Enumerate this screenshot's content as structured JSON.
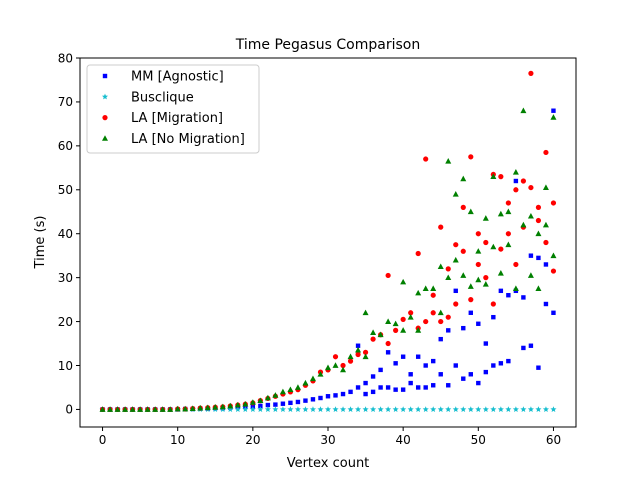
{
  "chart_data": {
    "type": "scatter",
    "title": "Time Pegasus Comparison",
    "xlabel": "Vertex count",
    "ylabel": "Time (s)",
    "xlim": [
      -3,
      63
    ],
    "ylim": [
      -4,
      80
    ],
    "xticks": [
      0,
      10,
      20,
      30,
      40,
      50,
      60
    ],
    "yticks": [
      0,
      10,
      20,
      30,
      40,
      50,
      60,
      70,
      80
    ],
    "grid": false,
    "legend": "top-left",
    "series": [
      {
        "name": "MM [Agnostic]",
        "color": "#0000ff",
        "marker": "square",
        "points": [
          [
            0,
            0
          ],
          [
            1,
            0
          ],
          [
            2,
            0
          ],
          [
            3,
            0
          ],
          [
            4,
            0
          ],
          [
            5,
            0
          ],
          [
            6,
            0
          ],
          [
            7,
            0
          ],
          [
            8,
            0
          ],
          [
            9,
            0
          ],
          [
            10,
            0
          ],
          [
            11,
            0.1
          ],
          [
            12,
            0.1
          ],
          [
            13,
            0.2
          ],
          [
            14,
            0.2
          ],
          [
            15,
            0.3
          ],
          [
            16,
            0.3
          ],
          [
            17,
            0.4
          ],
          [
            18,
            0.5
          ],
          [
            19,
            0.6
          ],
          [
            20,
            0.7
          ],
          [
            21,
            0.8
          ],
          [
            22,
            1.0
          ],
          [
            23,
            1.1
          ],
          [
            24,
            1.3
          ],
          [
            25,
            1.5
          ],
          [
            26,
            1.7
          ],
          [
            27,
            2.0
          ],
          [
            28,
            2.3
          ],
          [
            29,
            2.6
          ],
          [
            30,
            3.0
          ],
          [
            31,
            3.2
          ],
          [
            32,
            3.5
          ],
          [
            33,
            4.0
          ],
          [
            34,
            14.5
          ],
          [
            34,
            5.0
          ],
          [
            35,
            3.5
          ],
          [
            35,
            6.0
          ],
          [
            36,
            4.0
          ],
          [
            36,
            7.5
          ],
          [
            37,
            5.0
          ],
          [
            37,
            9.0
          ],
          [
            38,
            5.0
          ],
          [
            38,
            13.0
          ],
          [
            39,
            4.5
          ],
          [
            39,
            10.5
          ],
          [
            40,
            4.5
          ],
          [
            40,
            12.0
          ],
          [
            41,
            6.0
          ],
          [
            41,
            8.0
          ],
          [
            42,
            5.0
          ],
          [
            42,
            12.0
          ],
          [
            43,
            5.0
          ],
          [
            43,
            10.0
          ],
          [
            44,
            5.5
          ],
          [
            44,
            11.0
          ],
          [
            45,
            8.0
          ],
          [
            45,
            16.0
          ],
          [
            46,
            5.5
          ],
          [
            46,
            18.0
          ],
          [
            47,
            10.0
          ],
          [
            47,
            27.0
          ],
          [
            48,
            7.0
          ],
          [
            48,
            18.5
          ],
          [
            49,
            8.0
          ],
          [
            49,
            22.0
          ],
          [
            50,
            6.0
          ],
          [
            50,
            19.5
          ],
          [
            51,
            8.5
          ],
          [
            51,
            15.0
          ],
          [
            52,
            10.0
          ],
          [
            52,
            21.0
          ],
          [
            53,
            10.5
          ],
          [
            53,
            27.0
          ],
          [
            54,
            11.0
          ],
          [
            54,
            26.0
          ],
          [
            55,
            27.0
          ],
          [
            55,
            52.0
          ],
          [
            56,
            14.0
          ],
          [
            56,
            25.5
          ],
          [
            57,
            14.5
          ],
          [
            57,
            35.0
          ],
          [
            58,
            9.5
          ],
          [
            58,
            34.5
          ],
          [
            59,
            24.0
          ],
          [
            59,
            33.0
          ],
          [
            60,
            22.0
          ],
          [
            60,
            68.0
          ]
        ]
      },
      {
        "name": "Busclique",
        "color": "#17becf",
        "marker": "star",
        "points": [
          [
            0,
            0
          ],
          [
            1,
            0
          ],
          [
            2,
            0
          ],
          [
            3,
            0
          ],
          [
            4,
            0
          ],
          [
            5,
            0
          ],
          [
            6,
            0
          ],
          [
            7,
            0
          ],
          [
            8,
            0
          ],
          [
            9,
            0
          ],
          [
            10,
            0
          ],
          [
            11,
            0
          ],
          [
            12,
            0
          ],
          [
            13,
            0
          ],
          [
            14,
            0
          ],
          [
            15,
            0
          ],
          [
            16,
            0
          ],
          [
            17,
            0
          ],
          [
            18,
            0
          ],
          [
            19,
            0
          ],
          [
            20,
            0
          ],
          [
            21,
            0
          ],
          [
            22,
            0
          ],
          [
            23,
            0
          ],
          [
            24,
            0
          ],
          [
            25,
            0
          ],
          [
            26,
            0
          ],
          [
            27,
            0
          ],
          [
            28,
            0
          ],
          [
            29,
            0
          ],
          [
            30,
            0
          ],
          [
            31,
            0
          ],
          [
            32,
            0
          ],
          [
            33,
            0
          ],
          [
            34,
            0
          ],
          [
            35,
            0
          ],
          [
            36,
            0
          ],
          [
            37,
            0
          ],
          [
            38,
            0
          ],
          [
            39,
            0
          ],
          [
            40,
            0
          ],
          [
            41,
            0
          ],
          [
            42,
            0
          ],
          [
            43,
            0
          ],
          [
            44,
            0
          ],
          [
            45,
            0
          ],
          [
            46,
            0
          ],
          [
            47,
            0
          ],
          [
            48,
            0
          ],
          [
            49,
            0
          ],
          [
            50,
            0
          ],
          [
            51,
            0
          ],
          [
            52,
            0
          ],
          [
            53,
            0
          ],
          [
            54,
            0
          ],
          [
            55,
            0
          ],
          [
            56,
            0
          ],
          [
            57,
            0
          ],
          [
            58,
            0
          ],
          [
            59,
            0
          ],
          [
            60,
            0
          ]
        ]
      },
      {
        "name": "LA [Migration]",
        "color": "#ff0000",
        "marker": "circle",
        "points": [
          [
            0,
            0
          ],
          [
            1,
            0
          ],
          [
            2,
            0
          ],
          [
            3,
            0
          ],
          [
            4,
            0
          ],
          [
            5,
            0
          ],
          [
            6,
            0
          ],
          [
            7,
            0
          ],
          [
            8,
            0
          ],
          [
            9,
            0
          ],
          [
            10,
            0.1
          ],
          [
            11,
            0.1
          ],
          [
            12,
            0.2
          ],
          [
            13,
            0.3
          ],
          [
            14,
            0.4
          ],
          [
            15,
            0.5
          ],
          [
            16,
            0.6
          ],
          [
            17,
            0.8
          ],
          [
            18,
            1.0
          ],
          [
            19,
            1.2
          ],
          [
            20,
            1.5
          ],
          [
            21,
            2.0
          ],
          [
            22,
            2.5
          ],
          [
            23,
            3.0
          ],
          [
            24,
            3.5
          ],
          [
            25,
            4.0
          ],
          [
            26,
            4.5
          ],
          [
            27,
            5.5
          ],
          [
            28,
            6.5
          ],
          [
            29,
            8.5
          ],
          [
            30,
            9.0
          ],
          [
            31,
            12.0
          ],
          [
            32,
            10.0
          ],
          [
            33,
            11.0
          ],
          [
            34,
            12.5
          ],
          [
            35,
            13.0
          ],
          [
            36,
            16.0
          ],
          [
            37,
            17.0
          ],
          [
            38,
            30.5
          ],
          [
            38,
            15.0
          ],
          [
            39,
            18.0
          ],
          [
            40,
            20.5
          ],
          [
            41,
            22.0
          ],
          [
            42,
            35.5
          ],
          [
            42,
            18.5
          ],
          [
            43,
            57.0
          ],
          [
            43,
            20.0
          ],
          [
            44,
            26.0
          ],
          [
            44,
            22.0
          ],
          [
            45,
            41.5
          ],
          [
            45,
            20.0
          ],
          [
            46,
            32.0
          ],
          [
            46,
            21.0
          ],
          [
            47,
            37.5
          ],
          [
            47,
            24.0
          ],
          [
            48,
            46.0
          ],
          [
            48,
            36.0
          ],
          [
            49,
            57.5
          ],
          [
            49,
            25.0
          ],
          [
            50,
            40.0
          ],
          [
            50,
            33.0
          ],
          [
            51,
            38.0
          ],
          [
            51,
            30.0
          ],
          [
            52,
            53.5
          ],
          [
            52,
            24.0
          ],
          [
            53,
            53.0
          ],
          [
            53,
            36.5
          ],
          [
            54,
            47.0
          ],
          [
            54,
            40.0
          ],
          [
            55,
            50.0
          ],
          [
            55,
            33.0
          ],
          [
            56,
            52.0
          ],
          [
            56,
            41.5
          ],
          [
            57,
            76.5
          ],
          [
            57,
            50.5
          ],
          [
            58,
            46.0
          ],
          [
            58,
            43.0
          ],
          [
            59,
            58.5
          ],
          [
            59,
            38.0
          ],
          [
            60,
            47.0
          ],
          [
            60,
            31.5
          ]
        ]
      },
      {
        "name": "LA [No Migration]",
        "color": "#008000",
        "marker": "triangle",
        "points": [
          [
            0,
            0
          ],
          [
            1,
            0
          ],
          [
            2,
            0
          ],
          [
            3,
            0
          ],
          [
            4,
            0
          ],
          [
            5,
            0
          ],
          [
            6,
            0
          ],
          [
            7,
            0
          ],
          [
            8,
            0
          ],
          [
            9,
            0
          ],
          [
            10,
            0.1
          ],
          [
            11,
            0.1
          ],
          [
            12,
            0.2
          ],
          [
            13,
            0.3
          ],
          [
            14,
            0.4
          ],
          [
            15,
            0.5
          ],
          [
            16,
            0.6
          ],
          [
            17,
            0.8
          ],
          [
            18,
            1.0
          ],
          [
            19,
            1.2
          ],
          [
            20,
            1.6
          ],
          [
            21,
            2.0
          ],
          [
            22,
            2.6
          ],
          [
            23,
            3.2
          ],
          [
            24,
            4.0
          ],
          [
            25,
            4.5
          ],
          [
            26,
            5.0
          ],
          [
            27,
            6.0
          ],
          [
            28,
            7.0
          ],
          [
            29,
            8.0
          ],
          [
            30,
            9.5
          ],
          [
            31,
            10.0
          ],
          [
            32,
            9.0
          ],
          [
            33,
            12.0
          ],
          [
            34,
            13.5
          ],
          [
            35,
            22.0
          ],
          [
            35,
            12.0
          ],
          [
            36,
            17.5
          ],
          [
            37,
            17.0
          ],
          [
            38,
            20.0
          ],
          [
            39,
            19.5
          ],
          [
            40,
            29.0
          ],
          [
            40,
            18.0
          ],
          [
            41,
            21.0
          ],
          [
            42,
            26.5
          ],
          [
            42,
            18.0
          ],
          [
            43,
            27.5
          ],
          [
            44,
            27.5
          ],
          [
            45,
            32.5
          ],
          [
            45,
            22.0
          ],
          [
            46,
            56.5
          ],
          [
            46,
            30.0
          ],
          [
            47,
            49.0
          ],
          [
            47,
            34.0
          ],
          [
            48,
            52.5
          ],
          [
            48,
            30.5
          ],
          [
            49,
            45.0
          ],
          [
            49,
            28.0
          ],
          [
            50,
            36.0
          ],
          [
            50,
            29.5
          ],
          [
            51,
            43.5
          ],
          [
            51,
            28.5
          ],
          [
            52,
            53.0
          ],
          [
            52,
            37.0
          ],
          [
            53,
            44.5
          ],
          [
            53,
            31.0
          ],
          [
            54,
            45.0
          ],
          [
            54,
            37.5
          ],
          [
            55,
            54.0
          ],
          [
            55,
            27.5
          ],
          [
            56,
            68.0
          ],
          [
            56,
            42.0
          ],
          [
            57,
            44.0
          ],
          [
            57,
            30.5
          ],
          [
            58,
            40.0
          ],
          [
            58,
            27.5
          ],
          [
            59,
            50.5
          ],
          [
            59,
            42.0
          ],
          [
            60,
            66.5
          ],
          [
            60,
            35.0
          ]
        ]
      }
    ]
  }
}
